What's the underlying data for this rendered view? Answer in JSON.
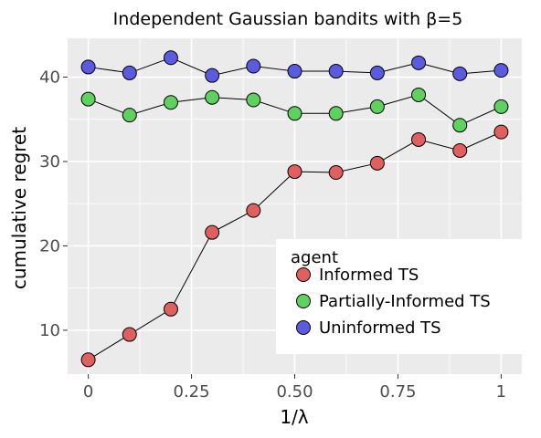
{
  "chart_data": {
    "type": "line",
    "title": "Independent Gaussian bandits with β=5",
    "xlabel": "1/λ",
    "ylabel": "cumulative regret",
    "xlim": [
      -0.05,
      1.05
    ],
    "ylim": [
      4.8,
      44.6
    ],
    "xticks": [
      0,
      0.25,
      0.5,
      0.75,
      1
    ],
    "xtick_labels": [
      "0",
      "0.25",
      "0.50",
      "0.75",
      "1"
    ],
    "yticks": [
      10,
      20,
      30,
      40
    ],
    "ytick_labels": [
      "10",
      "20",
      "30",
      "40"
    ],
    "grid": true,
    "legend": {
      "title": "agent",
      "placement": "bottom-right"
    },
    "x": [
      0,
      0.1,
      0.2,
      0.3,
      0.4,
      0.5,
      0.6,
      0.7,
      0.8,
      0.9,
      1.0
    ],
    "series": [
      {
        "name": "Informed TS",
        "color": "#e06060",
        "values": [
          6.5,
          9.5,
          12.5,
          21.6,
          24.2,
          28.8,
          28.7,
          29.8,
          32.6,
          31.3,
          33.5
        ]
      },
      {
        "name": "Partially-Informed TS",
        "color": "#5ed15e",
        "values": [
          37.4,
          35.5,
          37.0,
          37.6,
          37.3,
          35.7,
          35.7,
          36.5,
          37.9,
          34.3,
          36.5
        ]
      },
      {
        "name": "Uninformed TS",
        "color": "#5b5be0",
        "values": [
          41.2,
          40.5,
          42.3,
          40.2,
          41.3,
          40.7,
          40.7,
          40.5,
          41.7,
          40.4,
          40.8
        ]
      }
    ]
  }
}
